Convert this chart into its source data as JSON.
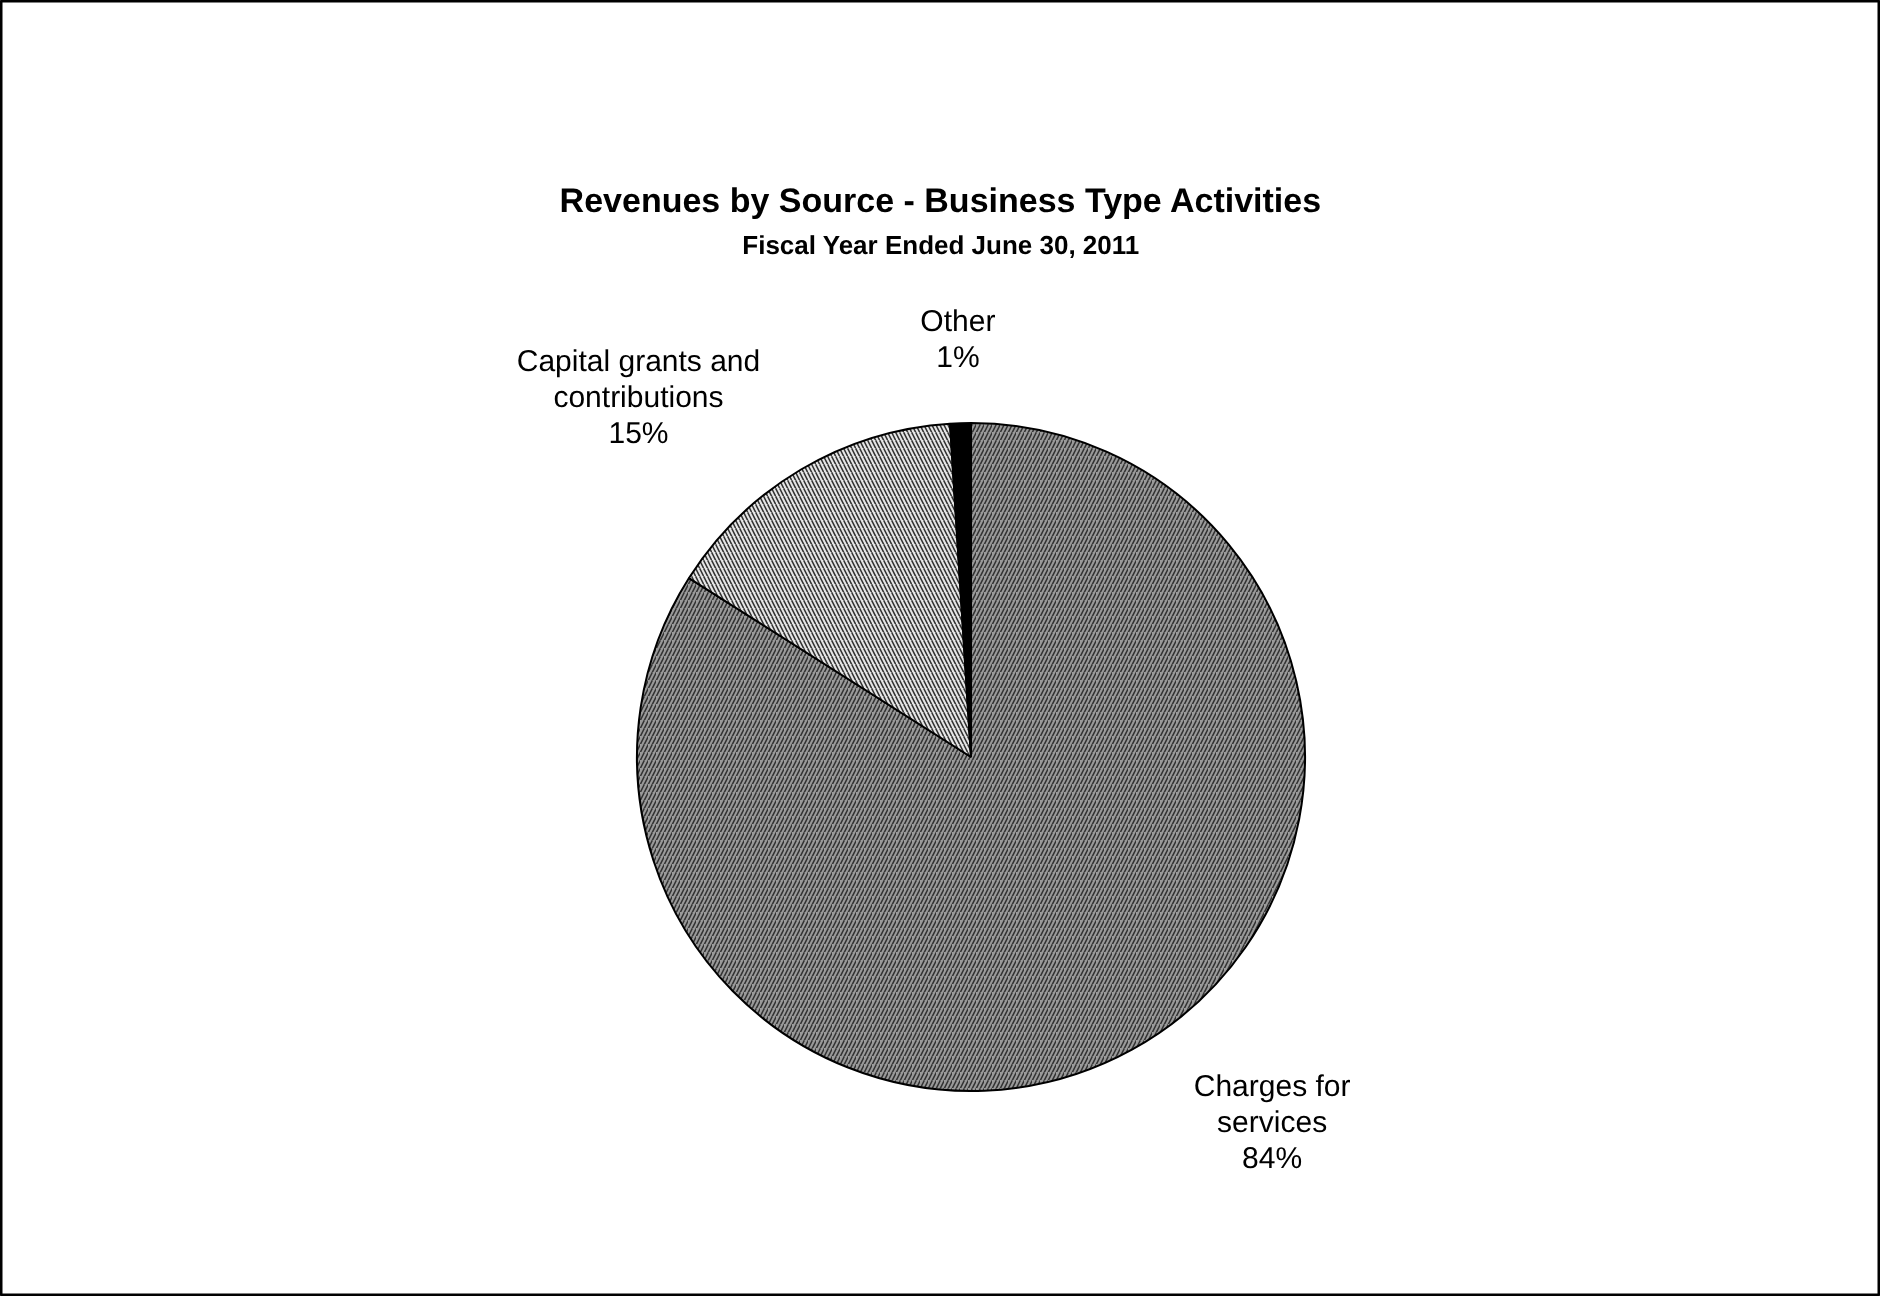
{
  "chart_data": {
    "type": "pie",
    "title": "Revenues by Source - Business Type Activities",
    "subtitle": "Fiscal Year Ended June 30, 2011",
    "categories": [
      "Charges for\nservices",
      "Capital grants and\ncontributions",
      "Other"
    ],
    "values": [
      84,
      15,
      1
    ],
    "colors": [
      "#9a9a9a",
      "#e6e6e6",
      "#000000"
    ],
    "value_labels": [
      "84%",
      "15%",
      "1%"
    ]
  }
}
